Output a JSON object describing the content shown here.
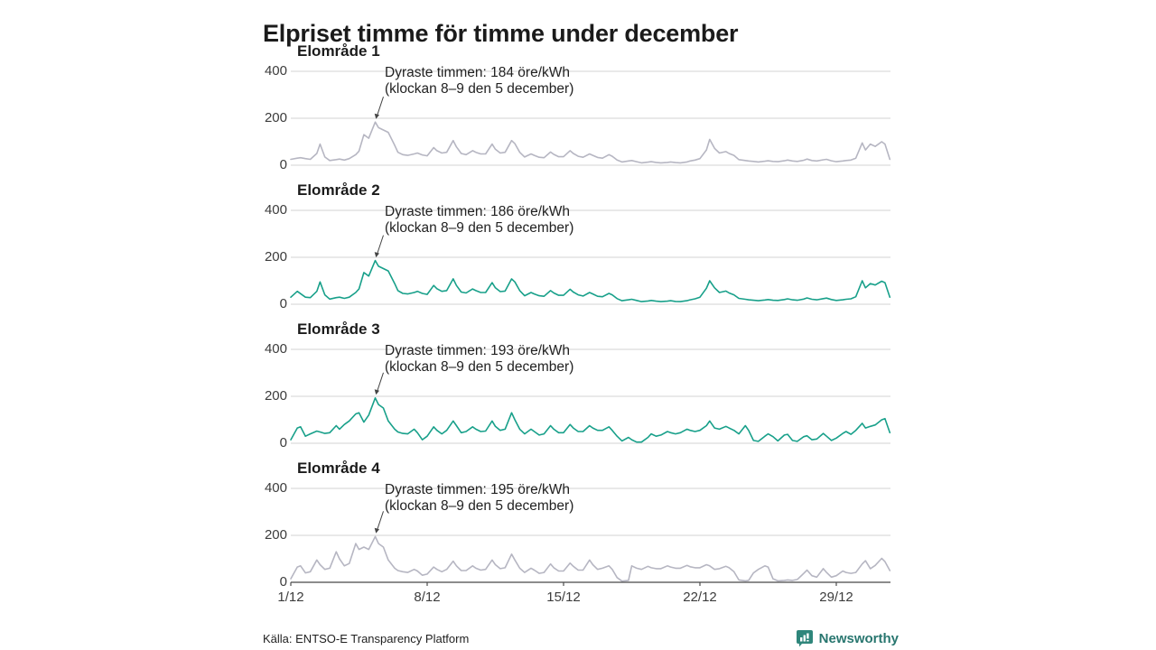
{
  "title": "Elpriset timme för timme under december",
  "source": "Källa: ENTSO-E Transparency Platform",
  "brand": {
    "name": "Newsworthy",
    "text_color": "#28766f",
    "icon_color": "#2f867b",
    "icon": "bar-chart-bubble-icon"
  },
  "colors": {
    "teal_line": "#18a08a",
    "gray_line": "#b6b6c2",
    "grid": "#dcdcdc",
    "axis": "#4c4c4c",
    "arrow": "#444444"
  },
  "unit": "öre/kWh",
  "chart_data": [
    {
      "type": "line",
      "title": "Elområde 1",
      "line_color": "#b6b6c2",
      "ylim": [
        0,
        440
      ],
      "yticks": [
        0,
        200,
        400
      ],
      "grid": true,
      "show_x_axis": false,
      "xtick_labels": [
        "1/12",
        "8/12",
        "15/12",
        "22/12",
        "29/12"
      ],
      "xtick_days": [
        1,
        8,
        15,
        22,
        29
      ],
      "annotation": {
        "line1": "Dyraste timmen: 184 öre/kWh",
        "line2": "(klockan 8–9 den 5 december)",
        "peak_day": 5,
        "peak_hour": 8,
        "peak_value": 184
      },
      "sample_hours": [
        0,
        8,
        12,
        18
      ],
      "values_per_day": [
        [
          25,
          30,
          32,
          28
        ],
        [
          25,
          50,
          90,
          35
        ],
        [
          20,
          24,
          26,
          22
        ],
        [
          28,
          45,
          60,
          130
        ],
        [
          115,
          184,
          160,
          150
        ],
        [
          140,
          85,
          55,
          45
        ],
        [
          42,
          48,
          52,
          44
        ],
        [
          40,
          75,
          62,
          52
        ],
        [
          55,
          105,
          78,
          50
        ],
        [
          45,
          62,
          55,
          48
        ],
        [
          48,
          90,
          68,
          52
        ],
        [
          55,
          105,
          92,
          55
        ],
        [
          35,
          48,
          42,
          34
        ],
        [
          32,
          56,
          46,
          36
        ],
        [
          36,
          62,
          50,
          38
        ],
        [
          34,
          48,
          42,
          33
        ],
        [
          30,
          45,
          38,
          22
        ],
        [
          14,
          18,
          20,
          15
        ],
        [
          10,
          13,
          15,
          12
        ],
        [
          10,
          12,
          14,
          11
        ],
        [
          10,
          14,
          18,
          22
        ],
        [
          28,
          65,
          110,
          72
        ],
        [
          52,
          58,
          50,
          42
        ],
        [
          24,
          20,
          18,
          16
        ],
        [
          14,
          17,
          19,
          16
        ],
        [
          15,
          19,
          22,
          18
        ],
        [
          16,
          21,
          26,
          20
        ],
        [
          18,
          23,
          25,
          19
        ],
        [
          15,
          18,
          20,
          22
        ],
        [
          30,
          95,
          65,
          90
        ],
        [
          80,
          100,
          90,
          25
        ]
      ]
    },
    {
      "type": "line",
      "title": "Elområde 2",
      "line_color": "#18a08a",
      "ylim": [
        0,
        440
      ],
      "yticks": [
        0,
        200,
        400
      ],
      "grid": true,
      "show_x_axis": false,
      "xtick_labels": [
        "1/12",
        "8/12",
        "15/12",
        "22/12",
        "29/12"
      ],
      "xtick_days": [
        1,
        8,
        15,
        22,
        29
      ],
      "annotation": {
        "line1": "Dyraste timmen: 186 öre/kWh",
        "line2": "(klockan 8–9 den 5 december)",
        "peak_day": 5,
        "peak_hour": 8,
        "peak_value": 186
      },
      "sample_hours": [
        0,
        8,
        12,
        18
      ],
      "values_per_day": [
        [
          30,
          55,
          45,
          30
        ],
        [
          28,
          55,
          95,
          40
        ],
        [
          22,
          28,
          30,
          25
        ],
        [
          30,
          50,
          65,
          135
        ],
        [
          120,
          186,
          162,
          152
        ],
        [
          142,
          88,
          58,
          46
        ],
        [
          44,
          50,
          55,
          46
        ],
        [
          42,
          80,
          66,
          55
        ],
        [
          58,
          108,
          80,
          52
        ],
        [
          48,
          65,
          58,
          50
        ],
        [
          50,
          92,
          70,
          54
        ],
        [
          56,
          108,
          95,
          58
        ],
        [
          36,
          50,
          44,
          36
        ],
        [
          34,
          58,
          48,
          38
        ],
        [
          38,
          64,
          52,
          40
        ],
        [
          35,
          50,
          44,
          34
        ],
        [
          32,
          46,
          40,
          24
        ],
        [
          15,
          19,
          21,
          16
        ],
        [
          11,
          14,
          16,
          13
        ],
        [
          11,
          13,
          15,
          12
        ],
        [
          11,
          15,
          19,
          23
        ],
        [
          30,
          68,
          100,
          70
        ],
        [
          50,
          56,
          48,
          40
        ],
        [
          25,
          21,
          19,
          17
        ],
        [
          15,
          18,
          20,
          17
        ],
        [
          16,
          20,
          23,
          19
        ],
        [
          17,
          22,
          27,
          21
        ],
        [
          19,
          24,
          26,
          20
        ],
        [
          16,
          19,
          21,
          23
        ],
        [
          32,
          100,
          70,
          88
        ],
        [
          82,
          98,
          92,
          30
        ]
      ]
    },
    {
      "type": "line",
      "title": "Elområde 3",
      "line_color": "#18a08a",
      "ylim": [
        0,
        440
      ],
      "yticks": [
        0,
        200,
        400
      ],
      "grid": true,
      "show_x_axis": false,
      "xtick_labels": [
        "1/12",
        "8/12",
        "15/12",
        "22/12",
        "29/12"
      ],
      "xtick_days": [
        1,
        8,
        15,
        22,
        29
      ],
      "annotation": {
        "line1": "Dyraste timmen: 193 öre/kWh",
        "line2": "(klockan 8–9 den 5 december)",
        "peak_day": 5,
        "peak_hour": 8,
        "peak_value": 193
      },
      "sample_hours": [
        0,
        8,
        12,
        18
      ],
      "values_per_day": [
        [
          15,
          65,
          70,
          30
        ],
        [
          40,
          52,
          48,
          42
        ],
        [
          45,
          75,
          60,
          80
        ],
        [
          95,
          125,
          130,
          90
        ],
        [
          120,
          193,
          165,
          150
        ],
        [
          95,
          60,
          48,
          42
        ],
        [
          40,
          60,
          45,
          15
        ],
        [
          30,
          70,
          55,
          40
        ],
        [
          55,
          95,
          75,
          45
        ],
        [
          50,
          70,
          60,
          50
        ],
        [
          52,
          95,
          72,
          55
        ],
        [
          60,
          130,
          100,
          60
        ],
        [
          40,
          60,
          50,
          35
        ],
        [
          40,
          75,
          60,
          45
        ],
        [
          45,
          80,
          65,
          50
        ],
        [
          50,
          75,
          65,
          55
        ],
        [
          55,
          70,
          55,
          30
        ],
        [
          10,
          25,
          15,
          5
        ],
        [
          5,
          25,
          40,
          30
        ],
        [
          35,
          50,
          45,
          40
        ],
        [
          45,
          60,
          55,
          50
        ],
        [
          55,
          75,
          95,
          65
        ],
        [
          60,
          72,
          65,
          55
        ],
        [
          40,
          75,
          55,
          12
        ],
        [
          8,
          30,
          40,
          28
        ],
        [
          10,
          35,
          38,
          12
        ],
        [
          8,
          28,
          32,
          15
        ],
        [
          18,
          42,
          30,
          12
        ],
        [
          22,
          42,
          50,
          38
        ],
        [
          55,
          85,
          65,
          72
        ],
        [
          78,
          100,
          105,
          45
        ]
      ]
    },
    {
      "type": "line",
      "title": "Elområde 4",
      "line_color": "#b6b6c2",
      "ylim": [
        0,
        440
      ],
      "yticks": [
        0,
        200,
        400
      ],
      "grid": true,
      "show_x_axis": true,
      "xtick_labels": [
        "1/12",
        "8/12",
        "15/12",
        "22/12",
        "29/12"
      ],
      "xtick_days": [
        1,
        8,
        15,
        22,
        29
      ],
      "annotation": {
        "line1": "Dyraste timmen: 195 öre/kWh",
        "line2": "(klockan 8–9 den 5 december)",
        "peak_day": 5,
        "peak_hour": 8,
        "peak_value": 195
      },
      "sample_hours": [
        0,
        8,
        12,
        18
      ],
      "values_per_day": [
        [
          15,
          65,
          70,
          40
        ],
        [
          45,
          95,
          75,
          55
        ],
        [
          60,
          130,
          100,
          70
        ],
        [
          80,
          165,
          140,
          150
        ],
        [
          140,
          195,
          165,
          150
        ],
        [
          95,
          60,
          50,
          45
        ],
        [
          42,
          55,
          48,
          30
        ],
        [
          35,
          65,
          55,
          45
        ],
        [
          55,
          90,
          70,
          50
        ],
        [
          50,
          70,
          60,
          52
        ],
        [
          55,
          95,
          75,
          58
        ],
        [
          62,
          120,
          95,
          60
        ],
        [
          42,
          60,
          52,
          38
        ],
        [
          42,
          78,
          62,
          48
        ],
        [
          48,
          82,
          68,
          52
        ],
        [
          52,
          95,
          75,
          55
        ],
        [
          60,
          70,
          55,
          20
        ],
        [
          5,
          8,
          70,
          60
        ],
        [
          55,
          68,
          62,
          58
        ],
        [
          58,
          70,
          65,
          60
        ],
        [
          60,
          72,
          66,
          62
        ],
        [
          62,
          75,
          70,
          55
        ],
        [
          58,
          68,
          62,
          45
        ],
        [
          10,
          6,
          8,
          40
        ],
        [
          55,
          70,
          65,
          15
        ],
        [
          6,
          8,
          10,
          8
        ],
        [
          12,
          38,
          52,
          28
        ],
        [
          22,
          58,
          42,
          22
        ],
        [
          28,
          48,
          42,
          38
        ],
        [
          42,
          78,
          92,
          58
        ],
        [
          72,
          102,
          88,
          50
        ]
      ]
    }
  ]
}
